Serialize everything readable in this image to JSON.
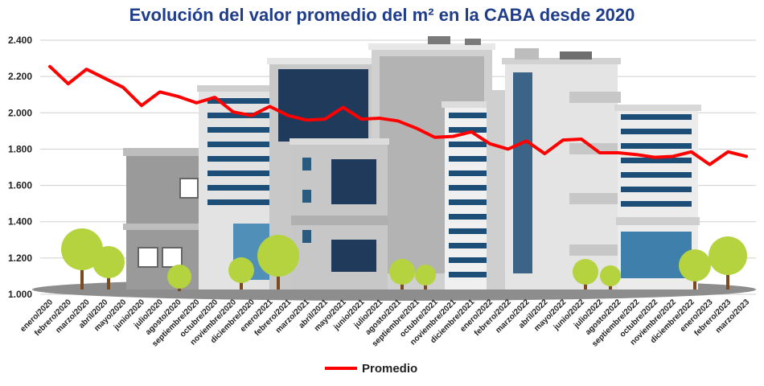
{
  "chart_data": {
    "type": "line",
    "title": "Evolución del valor promedio del m² en la CABA desde 2020",
    "categories": [
      "enero/2020",
      "febrero/2020",
      "marzo/2020",
      "abril/2020",
      "mayo/2020",
      "junio/2020",
      "julio/2020",
      "agosto/2020",
      "septiembre/2020",
      "octubre/2020",
      "noviembre/2020",
      "diciembre/2020",
      "enero/2021",
      "febrero/2021",
      "marzo/2021",
      "abril/2021",
      "mayo/2021",
      "junio/2021",
      "julio/2021",
      "agosto/2021",
      "septiembre/2021",
      "octubre/2021",
      "noviembre/2021",
      "diciembre/2021",
      "enero/2022",
      "febrero/2022",
      "marzo/2022",
      "abril/2022",
      "mayo/2022",
      "junio/2022",
      "julio/2022",
      "agosto/2022",
      "septiembre/2022",
      "octubre/2022",
      "noviembre/2022",
      "diciembre/2022",
      "enero/2023",
      "febrero/2023",
      "marzo/2023"
    ],
    "series": [
      {
        "name": "Promedio",
        "color": "#ff0000",
        "values": [
          2255,
          2160,
          2240,
          2190,
          2140,
          2040,
          2115,
          2090,
          2055,
          2085,
          2005,
          1985,
          2035,
          1985,
          1960,
          1965,
          2030,
          1965,
          1970,
          1955,
          1915,
          1865,
          1870,
          1895,
          1830,
          1800,
          1845,
          1775,
          1850,
          1855,
          1780,
          1780,
          1770,
          1755,
          1760,
          1785,
          1715,
          1785,
          1760
        ]
      }
    ],
    "yticks": [
      "2.400",
      "2.200",
      "2.000",
      "1.800",
      "1.600",
      "1.400",
      "1.200",
      "1.000"
    ],
    "ylim": [
      1000,
      2400
    ],
    "grid": true,
    "legend_position": "bottom"
  }
}
